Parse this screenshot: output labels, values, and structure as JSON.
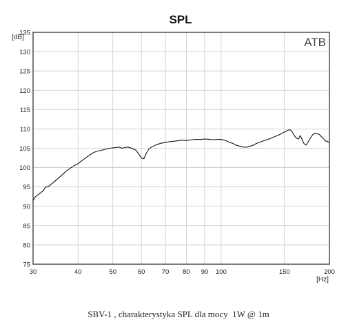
{
  "chart_data": {
    "type": "line",
    "title": "SPL",
    "watermark": "ATB",
    "xlabel": "[Hz]",
    "ylabel": "[dB]",
    "x_scale": "log",
    "xlim": [
      30,
      200
    ],
    "ylim": [
      75,
      135
    ],
    "grid": true,
    "x_ticks": [
      30,
      40,
      50,
      60,
      70,
      80,
      90,
      100,
      150,
      200
    ],
    "y_ticks": [
      75,
      80,
      85,
      90,
      95,
      100,
      105,
      110,
      115,
      120,
      125,
      130,
      135
    ],
    "series": [
      {
        "color": "#111111",
        "x": [
          30,
          30.5,
          31,
          31.5,
          32,
          32.5,
          33,
          34,
          35,
          36,
          37,
          38,
          39,
          40,
          41,
          42,
          43,
          44,
          45,
          46,
          47,
          48,
          49,
          50,
          51,
          52,
          53,
          54,
          55,
          56,
          57,
          58,
          59,
          60,
          61,
          62,
          63,
          64,
          66,
          68,
          70,
          72,
          75,
          78,
          80,
          83,
          85,
          88,
          90,
          93,
          95,
          98,
          100,
          103,
          105,
          108,
          110,
          113,
          115,
          118,
          120,
          123,
          125,
          130,
          135,
          140,
          145,
          150,
          153,
          155,
          157,
          160,
          162,
          164,
          166,
          168,
          170,
          172,
          175,
          178,
          180,
          183,
          185,
          188,
          190,
          193,
          195,
          198,
          200
        ],
        "y": [
          91.5,
          92.5,
          93,
          93.5,
          94,
          95,
          95,
          96,
          97,
          98,
          99,
          99.8,
          100.5,
          101,
          101.8,
          102.5,
          103.2,
          103.8,
          104.2,
          104.4,
          104.6,
          104.8,
          105,
          105.1,
          105.2,
          105.3,
          105,
          105.2,
          105.3,
          105.1,
          104.8,
          104.5,
          103.5,
          102.5,
          102.3,
          103.8,
          104.8,
          105.3,
          105.9,
          106.3,
          106.5,
          106.7,
          106.9,
          107.1,
          107,
          107.2,
          107.3,
          107.3,
          107.4,
          107.3,
          107.2,
          107.3,
          107.3,
          107,
          106.6,
          106.2,
          105.8,
          105.5,
          105.3,
          105.3,
          105.5,
          105.8,
          106.2,
          106.8,
          107.3,
          107.9,
          108.5,
          109.2,
          109.6,
          109.8,
          109.5,
          108.2,
          107.6,
          107.4,
          108.3,
          107.2,
          106.2,
          105.8,
          106.8,
          108,
          108.6,
          108.9,
          108.8,
          108.5,
          108,
          107.4,
          106.9,
          106.7,
          106.5
        ]
      }
    ]
  },
  "caption": "SBV-1 , charakterystyka SPL dla mocy  1W @ 1m"
}
